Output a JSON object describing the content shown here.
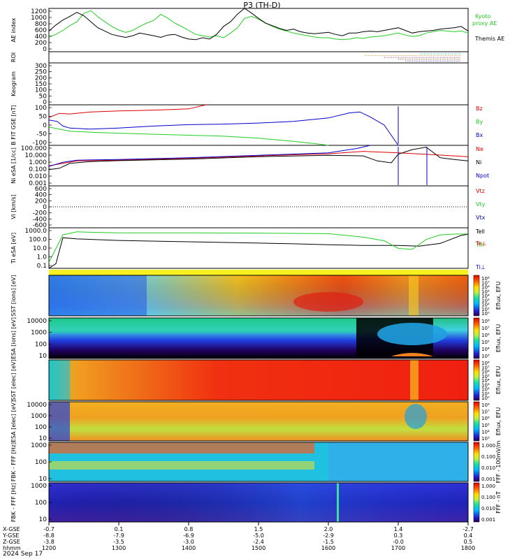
{
  "chart_data": {
    "type": "line",
    "title": "P3 (TH-D)",
    "date_label": "2024 Sep 17",
    "time_axis": {
      "range": [
        1200,
        1800
      ],
      "ticks": [
        "1200",
        "1300",
        "1400",
        "1500",
        "1600",
        "1700",
        "1800"
      ],
      "ephemeris_rows": [
        {
          "label": "X-GSE",
          "values": [
            "-0.7",
            "0.1",
            "0.8",
            "1.5",
            "2.0",
            "1.4",
            "-2.7"
          ]
        },
        {
          "label": "Y-GSE",
          "values": [
            "-8.8",
            "-7.9",
            "-6.9",
            "-5.0",
            "-2.9",
            "0.3",
            "0.4"
          ]
        },
        {
          "label": "Z-GSE",
          "values": [
            "-3.8",
            "-3.5",
            "-3.0",
            "-2.4",
            "-1.5",
            "-0.0",
            "0.5"
          ]
        },
        {
          "label": "hhmm",
          "values": [
            "1200",
            "1300",
            "1400",
            "1500",
            "1600",
            "1700",
            "1800"
          ]
        }
      ]
    },
    "panels": [
      {
        "id": "ae",
        "ylabel": "AE index",
        "yticks": [
          "1200",
          "1000",
          "800",
          "600",
          "400",
          "200",
          "0"
        ],
        "ylim": [
          0,
          1300
        ],
        "series": [
          {
            "name": "Kyoto proxy AE",
            "color": "#22cc22",
            "x": [
              1200,
              1210,
              1220,
              1230,
              1240,
              1250,
              1260,
              1270,
              1280,
              1290,
              1300,
              1310,
              1320,
              1330,
              1340,
              1350,
              1360,
              1370,
              1380,
              1390,
              1400,
              1410,
              1420,
              1430,
              1440,
              1450,
              1460,
              1470,
              1480,
              1490,
              1500,
              1510,
              1520,
              1530,
              1540,
              1550,
              1560,
              1570,
              1580,
              1590,
              1600,
              1610,
              1620,
              1630,
              1640,
              1650,
              1660,
              1670,
              1680,
              1690,
              1700,
              1710,
              1720,
              1730,
              1740,
              1750,
              1760,
              1770,
              1780,
              1790,
              1800
            ],
            "y": [
              450,
              520,
              640,
              780,
              900,
              1150,
              1230,
              1050,
              900,
              760,
              650,
              580,
              640,
              760,
              860,
              940,
              1120,
              1010,
              860,
              760,
              640,
              520,
              480,
              440,
              480,
              420,
              560,
              720,
              1000,
              1060,
              980,
              860,
              760,
              680,
              620,
              560,
              520,
              480,
              440,
              420,
              420,
              380,
              360,
              380,
              420,
              400,
              440,
              460,
              480,
              520,
              560,
              500,
              460,
              480,
              560,
              600,
              640,
              620,
              600,
              620,
              560
            ]
          },
          {
            "name": "Themis AE",
            "color": "#000000",
            "x": [
              1200,
              1210,
              1220,
              1230,
              1240,
              1250,
              1260,
              1270,
              1280,
              1290,
              1300,
              1310,
              1320,
              1330,
              1340,
              1350,
              1360,
              1370,
              1380,
              1390,
              1400,
              1410,
              1420,
              1430,
              1440,
              1450,
              1460,
              1470,
              1480,
              1490,
              1500,
              1510,
              1520,
              1530,
              1540,
              1550,
              1560,
              1570,
              1580,
              1590,
              1600,
              1610,
              1620,
              1630,
              1640,
              1650,
              1660,
              1670,
              1680,
              1690,
              1700,
              1710,
              1720,
              1730,
              1740,
              1750,
              1760,
              1770,
              1780,
              1790,
              1800
            ],
            "y": [
              620,
              800,
              950,
              1060,
              1180,
              1080,
              900,
              720,
              620,
              520,
              470,
              430,
              480,
              560,
              520,
              480,
              430,
              500,
              520,
              440,
              380,
              360,
              420,
              380,
              520,
              760,
              900,
              1130,
              1300,
              1160,
              1000,
              860,
              780,
              700,
              640,
              680,
              600,
              560,
              540,
              560,
              580,
              520,
              480,
              560,
              560,
              600,
              620,
              600,
              640,
              680,
              720,
              640,
              560,
              600,
              620,
              640,
              680,
              700,
              720,
              760,
              620
            ]
          }
        ]
      },
      {
        "id": "roi",
        "ylabel": "ROI",
        "lines": [
          {
            "color": "#00bcd4",
            "x": [
              1732,
              1790
            ]
          },
          {
            "color": "#d69a2a",
            "x": [
              1652,
              1790
            ]
          },
          {
            "color": "#b03a8a",
            "x": [
              1680,
              1790
            ]
          },
          {
            "color": "#8a5a2a",
            "x": [
              1700,
              1790
            ]
          },
          {
            "color": "#3c3cd0",
            "x": [
              1710,
              1790
            ]
          }
        ]
      },
      {
        "id": "keogram",
        "ylabel": "Keogram",
        "yticks": [
          "300",
          "250",
          "200",
          "150",
          "100",
          "50",
          "0"
        ],
        "ylim": [
          0,
          300
        ]
      },
      {
        "id": "bfield",
        "ylabel": "B FIT GSE [nT]",
        "yticks": [
          "100",
          "50",
          "0",
          "-50",
          "-100"
        ],
        "ylim": [
          -100,
          100
        ],
        "series": [
          {
            "name": "Bz",
            "color": "#dd0000",
            "x": [
              1200,
              1215,
              1230,
              1260,
              1300,
              1330,
              1360,
              1400,
              1425
            ],
            "y": [
              38,
              58,
              55,
              65,
              70,
              72,
              75,
              80,
              100
            ]
          },
          {
            "name": "By",
            "color": "#22cc22",
            "x": [
              1200,
              1215,
              1230,
              1260,
              1300,
              1350,
              1400,
              1450,
              1500,
              1550,
              1590,
              1600
            ],
            "y": [
              -10,
              -20,
              -30,
              -35,
              -40,
              -45,
              -50,
              -55,
              -65,
              -80,
              -95,
              -100
            ]
          },
          {
            "name": "Bx",
            "color": "#0000cc",
            "x": [
              1200,
              1212,
              1220,
              1230,
              1260,
              1300,
              1350,
              1400,
              1450,
              1500,
              1550,
              1600,
              1630,
              1645,
              1660,
              1680,
              1700
            ],
            "y": [
              25,
              18,
              -5,
              -15,
              -20,
              -15,
              -5,
              2,
              5,
              10,
              18,
              35,
              60,
              65,
              40,
              0,
              -100
            ]
          }
        ]
      },
      {
        "id": "density",
        "ylabel": "Ni eSA [1/cc]",
        "yticks": [
          "100.000",
          "10.000",
          "1.000",
          "0.100",
          "0.010",
          "0.001"
        ],
        "ylim": [
          0.001,
          100
        ],
        "scale": "log",
        "series": [
          {
            "name": "Ne",
            "color": "#dd0000",
            "x": [
              1200,
              1220,
              1240,
              1300,
              1400,
              1500,
              1600,
              1650,
              1700,
              1750,
              1800
            ],
            "y": [
              0.3,
              0.6,
              1.2,
              1.5,
              2.5,
              5,
              9,
              18,
              12,
              7,
              4
            ]
          },
          {
            "name": "Ni",
            "color": "#000000",
            "x": [
              1200,
              1215,
              1230,
              1260,
              1300,
              1400,
              1500,
              1600,
              1650,
              1670,
              1690,
              1700,
              1720,
              1740,
              1760,
              1780,
              1800
            ],
            "y": [
              0.1,
              0.15,
              0.6,
              1.0,
              1.3,
              2,
              4,
              6,
              5,
              1.2,
              0.7,
              8,
              30,
              60,
              3,
              1.8,
              1.2
            ]
          },
          {
            "name": "Npot",
            "color": "#0000cc",
            "x": [
              1200,
              1220,
              1240,
              1300,
              1400,
              1500,
              1600,
              1640,
              1660
            ],
            "y": [
              0.25,
              0.8,
              1.5,
              1.8,
              3,
              6,
              12,
              40,
              100
            ]
          }
        ]
      },
      {
        "id": "velocity",
        "ylabel": "Vi [km/s]",
        "yticks": [
          "600",
          "400",
          "200",
          "0",
          "-200",
          "-400",
          "-600"
        ],
        "ylim": [
          -700,
          700
        ],
        "legend": [
          "Vtz",
          "Vty",
          "Vtx"
        ]
      },
      {
        "id": "temperature",
        "ylabel": "Ti eSA [eV]",
        "yticks": [
          "1000.0",
          "100.0",
          "10.0",
          "1.0",
          "0.1"
        ],
        "ylim": [
          0.05,
          10000
        ],
        "scale": "log",
        "legend": [
          "Tell",
          "Te⊥",
          "Till",
          "Ti⊥"
        ],
        "series": [
          {
            "name": "Tell",
            "color": "#000000",
            "x": [
              1200,
              1210,
              1220,
              1240,
              1300,
              1400,
              1500,
              1550,
              1600,
              1650,
              1700,
              1730,
              1760,
              1790,
              1800
            ],
            "y": [
              0.05,
              0.2,
              500,
              350,
              220,
              150,
              100,
              80,
              60,
              50,
              50,
              40,
              90,
              1000,
              1400
            ]
          },
          {
            "name": "Till",
            "color": "#22cc22",
            "x": [
              1200,
              1220,
              1240,
              1260,
              1300,
              1400,
              1500,
              1600,
              1650,
              1680,
              1700,
              1720,
              1740,
              1760,
              1780,
              1800
            ],
            "y": [
              0.3,
              1200,
              3000,
              2600,
              2200,
              2200,
              2000,
              1700,
              600,
              200,
              20,
              15,
              300,
              1200,
              1500,
              1600
            ]
          }
        ]
      },
      {
        "id": "sst_ion",
        "ylabel": "SST [ions] [eV]",
        "colorbar": {
          "label": "Eflux, EFU",
          "ticks": [
            "10⁸",
            "10⁷",
            "10⁶",
            "10⁵",
            "10⁴",
            "10³",
            "10²",
            "10¹",
            "10⁰"
          ]
        }
      },
      {
        "id": "esa_ion",
        "ylabel": "ESA [ions] [eV]",
        "yticks": [
          "10000",
          "1000",
          "100",
          "10"
        ],
        "colorbar": {
          "label": "Eflux, EFU",
          "ticks": [
            "10⁸",
            "10⁷",
            "10⁶",
            "10⁵",
            "10⁴",
            "10³"
          ]
        }
      },
      {
        "id": "sst_e",
        "ylabel": "SST [elec] [eV]",
        "colorbar": {
          "label": "Eflux, EFU",
          "ticks": [
            "10⁸",
            "10⁷",
            "10⁶",
            "10⁵",
            "10⁴",
            "10³",
            "10²",
            "10¹",
            "10⁰"
          ]
        }
      },
      {
        "id": "esa_e",
        "ylabel": "ESA [elec] [eV]",
        "yticks": [
          "10000",
          "1000",
          "100",
          "10"
        ],
        "colorbar": {
          "label": "Eflux, EFU",
          "ticks": [
            "10⁸",
            "10⁷",
            "10⁶",
            "10⁵",
            "10⁴",
            "10³"
          ]
        }
      },
      {
        "id": "fbk_e",
        "ylabel": "FBK - FFF [Hz]",
        "yticks": [
          "1000",
          "100",
          "10"
        ],
        "colorbar": {
          "label": "FFF - 100mV/m",
          "ticks": [
            "1.000",
            "0.100",
            "0.010",
            "0.001"
          ]
        }
      },
      {
        "id": "fbk_b",
        "ylabel": "FBK - FFF [Hz]",
        "yticks": [
          "1000",
          "100",
          "10"
        ],
        "colorbar": {
          "label": "FFF - nT",
          "ticks": [
            "1.000",
            "0.100",
            "0.010",
            "0.001"
          ]
        }
      }
    ]
  },
  "labels": {
    "ae_legend_1": "Kyoto",
    "ae_legend_2": "proxy AE",
    "ae_legend_3": "Themis AE"
  }
}
